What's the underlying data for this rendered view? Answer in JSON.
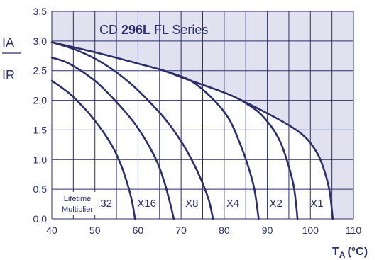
{
  "chart_data": {
    "type": "line",
    "title": "CD 296L FL Series",
    "title_parts": {
      "prefix": "CD",
      "bold": "296L",
      "suffix": "FL Series"
    },
    "ylabel": {
      "numerator": "IA",
      "denominator": "IR"
    },
    "xlabel": "TA (°C)",
    "xlabel_parts": {
      "main": "T",
      "sub": "A",
      "unit": "(°C)"
    },
    "xlim": [
      40,
      110
    ],
    "ylim": [
      0,
      3.5
    ],
    "x_ticks": [
      "40",
      "50",
      "60",
      "70",
      "80",
      "90",
      "100",
      "110"
    ],
    "y_ticks": [
      "0.0",
      "0.5",
      "1.0",
      "1.5",
      "2.0",
      "2.5",
      "3.0",
      "3.5"
    ],
    "grid": true,
    "multiplier_label": [
      "Lifetime",
      "Multiplier"
    ],
    "series": [
      {
        "name": "X1",
        "label_x": 101.5,
        "points": [
          [
            40,
            2.98
          ],
          [
            50,
            2.81
          ],
          [
            60,
            2.62
          ],
          [
            66,
            2.5
          ],
          [
            70,
            2.39
          ],
          [
            80,
            2.13
          ],
          [
            84,
            2.0
          ],
          [
            90,
            1.78
          ],
          [
            95,
            1.58
          ],
          [
            98,
            1.43
          ],
          [
            100,
            1.28
          ],
          [
            102,
            1.05
          ],
          [
            103.5,
            0.75
          ],
          [
            104.5,
            0.45
          ],
          [
            105.2,
            0.0
          ]
        ]
      },
      {
        "name": "X2",
        "label_x": 92,
        "points": [
          [
            84,
            2.0
          ],
          [
            88,
            1.8
          ],
          [
            91,
            1.55
          ],
          [
            93,
            1.3
          ],
          [
            94.5,
            1.0
          ],
          [
            96,
            0.6
          ],
          [
            96.6,
            0.3
          ],
          [
            97,
            0.0
          ]
        ]
      },
      {
        "name": "X4",
        "label_x": 82,
        "points": [
          [
            66,
            2.5
          ],
          [
            72,
            2.34
          ],
          [
            77,
            2.05
          ],
          [
            81,
            1.7
          ],
          [
            83.5,
            1.3
          ],
          [
            85.5,
            0.9
          ],
          [
            87,
            0.5
          ],
          [
            88,
            0.0
          ]
        ]
      },
      {
        "name": "X8",
        "label_x": 72.5,
        "points": [
          [
            40,
            2.98
          ],
          [
            46,
            2.84
          ],
          [
            52,
            2.62
          ],
          [
            58,
            2.3
          ],
          [
            63,
            1.95
          ],
          [
            67,
            1.62
          ],
          [
            70.5,
            1.25
          ],
          [
            73,
            0.92
          ],
          [
            75,
            0.6
          ],
          [
            76.5,
            0.3
          ],
          [
            77.4,
            0.0
          ]
        ]
      },
      {
        "name": "X16",
        "label_x": 62,
        "points": [
          [
            40,
            2.72
          ],
          [
            44,
            2.62
          ],
          [
            50,
            2.33
          ],
          [
            55,
            1.97
          ],
          [
            59,
            1.63
          ],
          [
            62,
            1.3
          ],
          [
            64.5,
            0.95
          ],
          [
            66.2,
            0.6
          ],
          [
            67.5,
            0.25
          ],
          [
            68.3,
            0.0
          ]
        ]
      },
      {
        "name": "X32",
        "label_x": 51.8,
        "points": [
          [
            40,
            2.33
          ],
          [
            44,
            2.12
          ],
          [
            48,
            1.83
          ],
          [
            51,
            1.56
          ],
          [
            54,
            1.23
          ],
          [
            56,
            0.92
          ],
          [
            57.5,
            0.6
          ],
          [
            58.6,
            0.3
          ],
          [
            59.3,
            0.0
          ]
        ]
      }
    ]
  },
  "colors": {
    "background": "#ffffff",
    "shaded_region": "#e1e1ef",
    "grid": "#2d2f6a",
    "curve": "#2d2f6a",
    "text": "#2d2f6a"
  }
}
